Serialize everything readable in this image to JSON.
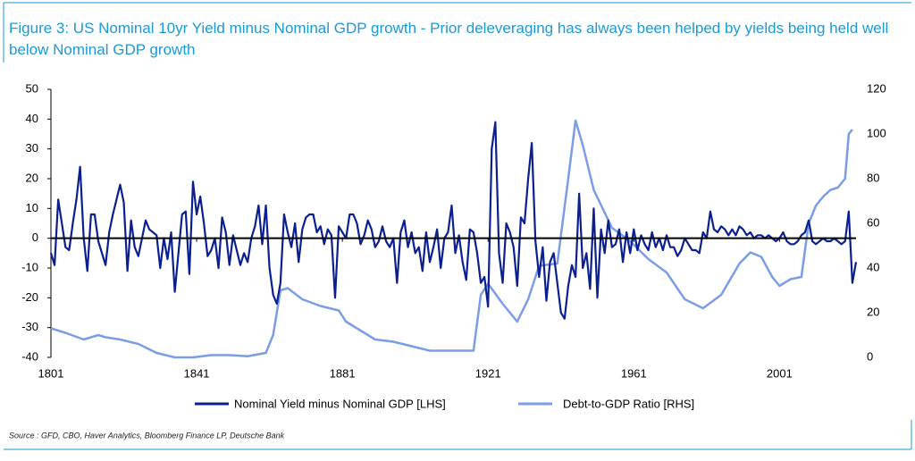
{
  "chart_data": {
    "type": "line",
    "title": "Figure 3: US Nominal 10yr Yield minus Nominal GDP growth - Prior deleveraging has always been helped by yields being held well below Nominal GDP growth",
    "source": "Source : GFD, CBO, Haver Analytics, Bloomberg Finance LP, Deutsche Bank",
    "xlim": [
      1801,
      2022
    ],
    "xticks": [
      1801,
      1841,
      1881,
      1921,
      1961,
      2001
    ],
    "ylim": [
      -40,
      50
    ],
    "yticks": [
      -40,
      -30,
      -20,
      -10,
      0,
      10,
      20,
      30,
      40,
      50
    ],
    "y2lim": [
      0,
      120
    ],
    "y2ticks": [
      0,
      20,
      40,
      60,
      80,
      100,
      120
    ],
    "series": [
      {
        "name": "Nominal Yield minus Nominal GDP [LHS]",
        "color": "#0b1f8f",
        "axis": "y",
        "x": [
          1801,
          1802,
          1803,
          1804,
          1805,
          1806,
          1807,
          1808,
          1809,
          1810,
          1811,
          1812,
          1813,
          1814,
          1815,
          1816,
          1817,
          1818,
          1819,
          1820,
          1821,
          1822,
          1823,
          1824,
          1825,
          1826,
          1827,
          1828,
          1829,
          1830,
          1831,
          1832,
          1833,
          1834,
          1835,
          1836,
          1837,
          1838,
          1839,
          1840,
          1841,
          1842,
          1843,
          1844,
          1845,
          1846,
          1847,
          1848,
          1849,
          1850,
          1851,
          1852,
          1853,
          1854,
          1855,
          1856,
          1857,
          1858,
          1859,
          1860,
          1861,
          1862,
          1863,
          1864,
          1865,
          1866,
          1867,
          1868,
          1869,
          1870,
          1871,
          1872,
          1873,
          1874,
          1875,
          1876,
          1877,
          1878,
          1879,
          1880,
          1881,
          1882,
          1883,
          1884,
          1885,
          1886,
          1887,
          1888,
          1889,
          1890,
          1891,
          1892,
          1893,
          1894,
          1895,
          1896,
          1897,
          1898,
          1899,
          1900,
          1901,
          1902,
          1903,
          1904,
          1905,
          1906,
          1907,
          1908,
          1909,
          1910,
          1911,
          1912,
          1913,
          1914,
          1915,
          1916,
          1917,
          1918,
          1919,
          1920,
          1921,
          1922,
          1923,
          1924,
          1925,
          1926,
          1927,
          1928,
          1929,
          1930,
          1931,
          1932,
          1933,
          1934,
          1935,
          1936,
          1937,
          1938,
          1939,
          1940,
          1941,
          1942,
          1943,
          1944,
          1945,
          1946,
          1947,
          1948,
          1949,
          1950,
          1951,
          1952,
          1953,
          1954,
          1955,
          1956,
          1957,
          1958,
          1959,
          1960,
          1961,
          1962,
          1963,
          1964,
          1965,
          1966,
          1967,
          1968,
          1969,
          1970,
          1971,
          1972,
          1973,
          1974,
          1975,
          1976,
          1977,
          1978,
          1979,
          1980,
          1981,
          1982,
          1983,
          1984,
          1985,
          1986,
          1987,
          1988,
          1989,
          1990,
          1991,
          1992,
          1993,
          1994,
          1995,
          1996,
          1997,
          1998,
          1999,
          2000,
          2001,
          2002,
          2003,
          2004,
          2005,
          2006,
          2007,
          2008,
          2009,
          2010,
          2011,
          2012,
          2013,
          2014,
          2015,
          2016,
          2017,
          2018,
          2019,
          2020,
          2021,
          2022
        ],
        "values": [
          -5,
          -9,
          13,
          5,
          -3,
          -4,
          5,
          13,
          24,
          0,
          -11,
          8,
          8,
          -1,
          -5,
          -9,
          2,
          8,
          13,
          18,
          12,
          -11,
          6,
          -3,
          -6,
          0,
          6,
          3,
          2,
          1,
          -10,
          0,
          -7,
          2,
          -18,
          -5,
          8,
          9,
          -12,
          19,
          8,
          14,
          5,
          -6,
          -4,
          0,
          -10,
          7,
          2,
          -9,
          1,
          -4,
          -9,
          -5,
          -8,
          0,
          4,
          11,
          -2,
          11,
          -10,
          -19,
          -22,
          -15,
          8,
          2,
          -3,
          5,
          -8,
          3,
          7,
          8,
          8,
          2,
          4,
          -2,
          3,
          1,
          -20,
          4,
          2,
          0,
          8,
          8,
          5,
          -2,
          1,
          6,
          3,
          -3,
          -1,
          4,
          -1,
          -3,
          0,
          -15,
          2,
          6,
          -3,
          2,
          -5,
          -3,
          -11,
          2,
          -8,
          -3,
          3,
          -10,
          0,
          2,
          11,
          -5,
          1,
          -8,
          -14,
          3,
          2,
          -5,
          -15,
          -13,
          -23,
          30,
          39,
          -5,
          -15,
          5,
          2,
          -3,
          -16,
          7,
          5,
          20,
          32,
          -1,
          -13,
          -3,
          -21,
          -8,
          -5,
          -15,
          -25,
          -27,
          -16,
          -9,
          -13,
          15,
          -10,
          -5,
          -17,
          10,
          -20,
          3,
          -5,
          6,
          -3,
          -2,
          3,
          -8,
          2,
          -5,
          3,
          -4,
          1,
          -2,
          -4,
          2,
          -3,
          0,
          -4,
          1,
          -3,
          -3,
          -6,
          -4,
          0,
          -2,
          -4,
          -4,
          -5,
          2,
          0,
          9,
          3,
          2,
          4,
          3,
          1,
          3,
          1,
          4,
          3,
          1,
          2,
          0,
          1,
          1,
          0,
          1,
          0,
          -1,
          0,
          2,
          -1,
          -2,
          -2,
          -1,
          1,
          2,
          6,
          -1,
          -2,
          -1,
          0,
          -1,
          -1,
          0,
          -1,
          -2,
          -1,
          9,
          -15,
          -8
        ]
      },
      {
        "name": "Debt-to-GDP Ratio [RHS]",
        "color": "#7b9de6",
        "axis": "y2",
        "x": [
          1801,
          1805,
          1810,
          1814,
          1816,
          1820,
          1825,
          1830,
          1835,
          1840,
          1845,
          1850,
          1855,
          1860,
          1862,
          1864,
          1866,
          1870,
          1875,
          1880,
          1882,
          1885,
          1890,
          1895,
          1900,
          1905,
          1910,
          1915,
          1917,
          1919,
          1921,
          1925,
          1929,
          1932,
          1935,
          1940,
          1943,
          1945,
          1947,
          1950,
          1955,
          1960,
          1965,
          1970,
          1975,
          1980,
          1985,
          1990,
          1993,
          1996,
          1999,
          2001,
          2004,
          2007,
          2009,
          2011,
          2013,
          2015,
          2017,
          2019,
          2020,
          2021
        ],
        "values": [
          13,
          11,
          8,
          10,
          9,
          8,
          6,
          2,
          0,
          0,
          1,
          1,
          0.5,
          2,
          10,
          30,
          31,
          26,
          23,
          21,
          16,
          13,
          8,
          7,
          5,
          3,
          3,
          3,
          3,
          28,
          33,
          24,
          16,
          26,
          41,
          42,
          80,
          106,
          95,
          75,
          58,
          52,
          44,
          38,
          26,
          22,
          28,
          42,
          47,
          45,
          36,
          32,
          35,
          36,
          60,
          68,
          72,
          75,
          76,
          80,
          100,
          102
        ]
      }
    ]
  }
}
